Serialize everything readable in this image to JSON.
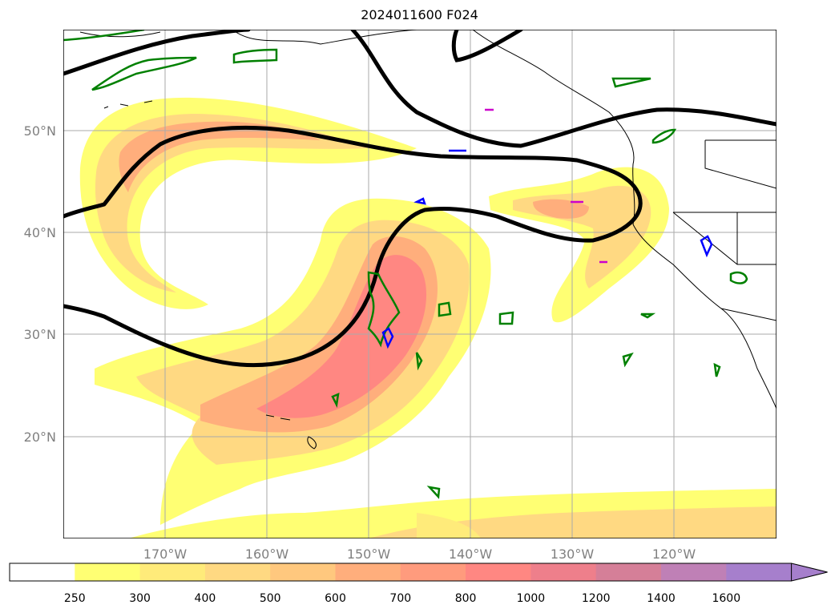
{
  "title": "2024011600 F024",
  "map": {
    "lat_labels": [
      "50°N",
      "40°N",
      "30°N",
      "20°N"
    ],
    "lon_labels": [
      "170°W",
      "160°W",
      "150°W",
      "140°W",
      "130°W",
      "120°W"
    ]
  },
  "colorbar": {
    "levels": [
      "250",
      "300",
      "400",
      "500",
      "600",
      "700",
      "800",
      "1000",
      "1200",
      "1400",
      "1600"
    ],
    "colors": [
      "#ffffff",
      "#ffff73",
      "#ffeb7a",
      "#ffd982",
      "#ffc87e",
      "#ffae7c",
      "#ff9b7d",
      "#ff8782",
      "#ee7f8b",
      "#d57f98",
      "#bf80b6",
      "#a67fcc"
    ],
    "extend": "max"
  }
}
